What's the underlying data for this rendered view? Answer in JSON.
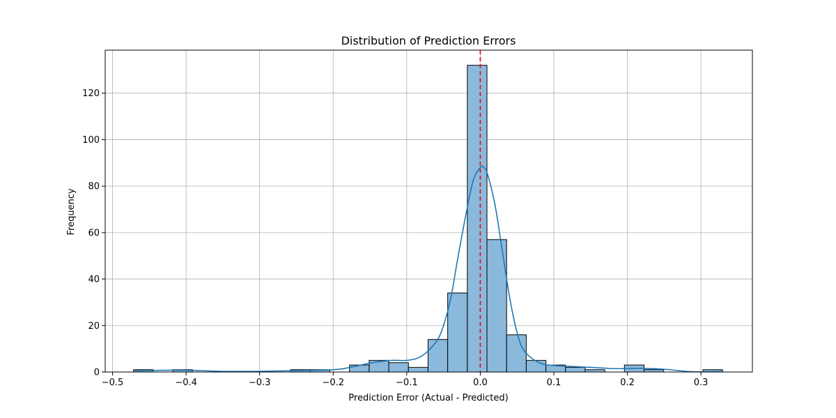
{
  "chart_data": {
    "type": "bar",
    "title": "Distribution of Prediction Errors",
    "xlabel": "Prediction Error (Actual - Predicted)",
    "ylabel": "Frequency",
    "xlim": [
      -0.51,
      0.37
    ],
    "ylim": [
      0,
      138.5
    ],
    "xticks": [
      -0.5,
      -0.4,
      -0.3,
      -0.2,
      -0.1,
      0.0,
      0.1,
      0.2,
      0.3
    ],
    "xtick_labels": [
      "−0.5",
      "−0.4",
      "−0.3",
      "−0.2",
      "−0.1",
      "0.0",
      "0.1",
      "0.2",
      "0.3"
    ],
    "yticks": [
      0,
      20,
      40,
      60,
      80,
      100,
      120
    ],
    "ytick_labels": [
      "0",
      "20",
      "40",
      "60",
      "80",
      "100",
      "120"
    ],
    "grid": true,
    "bin_start": -0.4715,
    "bin_width": 0.0267,
    "values": [
      1,
      0,
      1,
      0,
      0,
      0,
      0,
      0,
      1,
      1,
      0,
      3,
      5,
      4,
      2,
      14,
      34,
      132,
      57,
      16,
      5,
      3,
      2,
      1,
      0,
      3,
      1,
      0,
      0,
      1
    ],
    "bar_color": "#8ab9dc",
    "bar_edge_color": "#000000",
    "kde": {
      "x": [
        -0.47,
        -0.44,
        -0.41,
        -0.38,
        -0.35,
        -0.3,
        -0.25,
        -0.2,
        -0.18,
        -0.15,
        -0.12,
        -0.1,
        -0.08,
        -0.06,
        -0.05,
        -0.04,
        -0.03,
        -0.02,
        -0.01,
        0.0,
        0.005,
        0.01,
        0.02,
        0.03,
        0.04,
        0.05,
        0.06,
        0.08,
        0.1,
        0.12,
        0.15,
        0.18,
        0.2,
        0.22,
        0.25,
        0.28,
        0.3,
        0.33
      ],
      "y": [
        0.5,
        0.7,
        0.8,
        0.6,
        0.3,
        0.3,
        0.6,
        1.0,
        1.8,
        3.8,
        5.0,
        5.0,
        6.8,
        13,
        20,
        32,
        50,
        67,
        82,
        88,
        88,
        85,
        72,
        52,
        32,
        17,
        9,
        4,
        2.8,
        2.5,
        2.0,
        1.5,
        1.5,
        1.6,
        1.2,
        0.3,
        0.1,
        0.2
      ],
      "color": "#1f77b4"
    },
    "reference_line": {
      "x": 0.0,
      "color": "#e31a1c",
      "style": "dashed"
    }
  }
}
